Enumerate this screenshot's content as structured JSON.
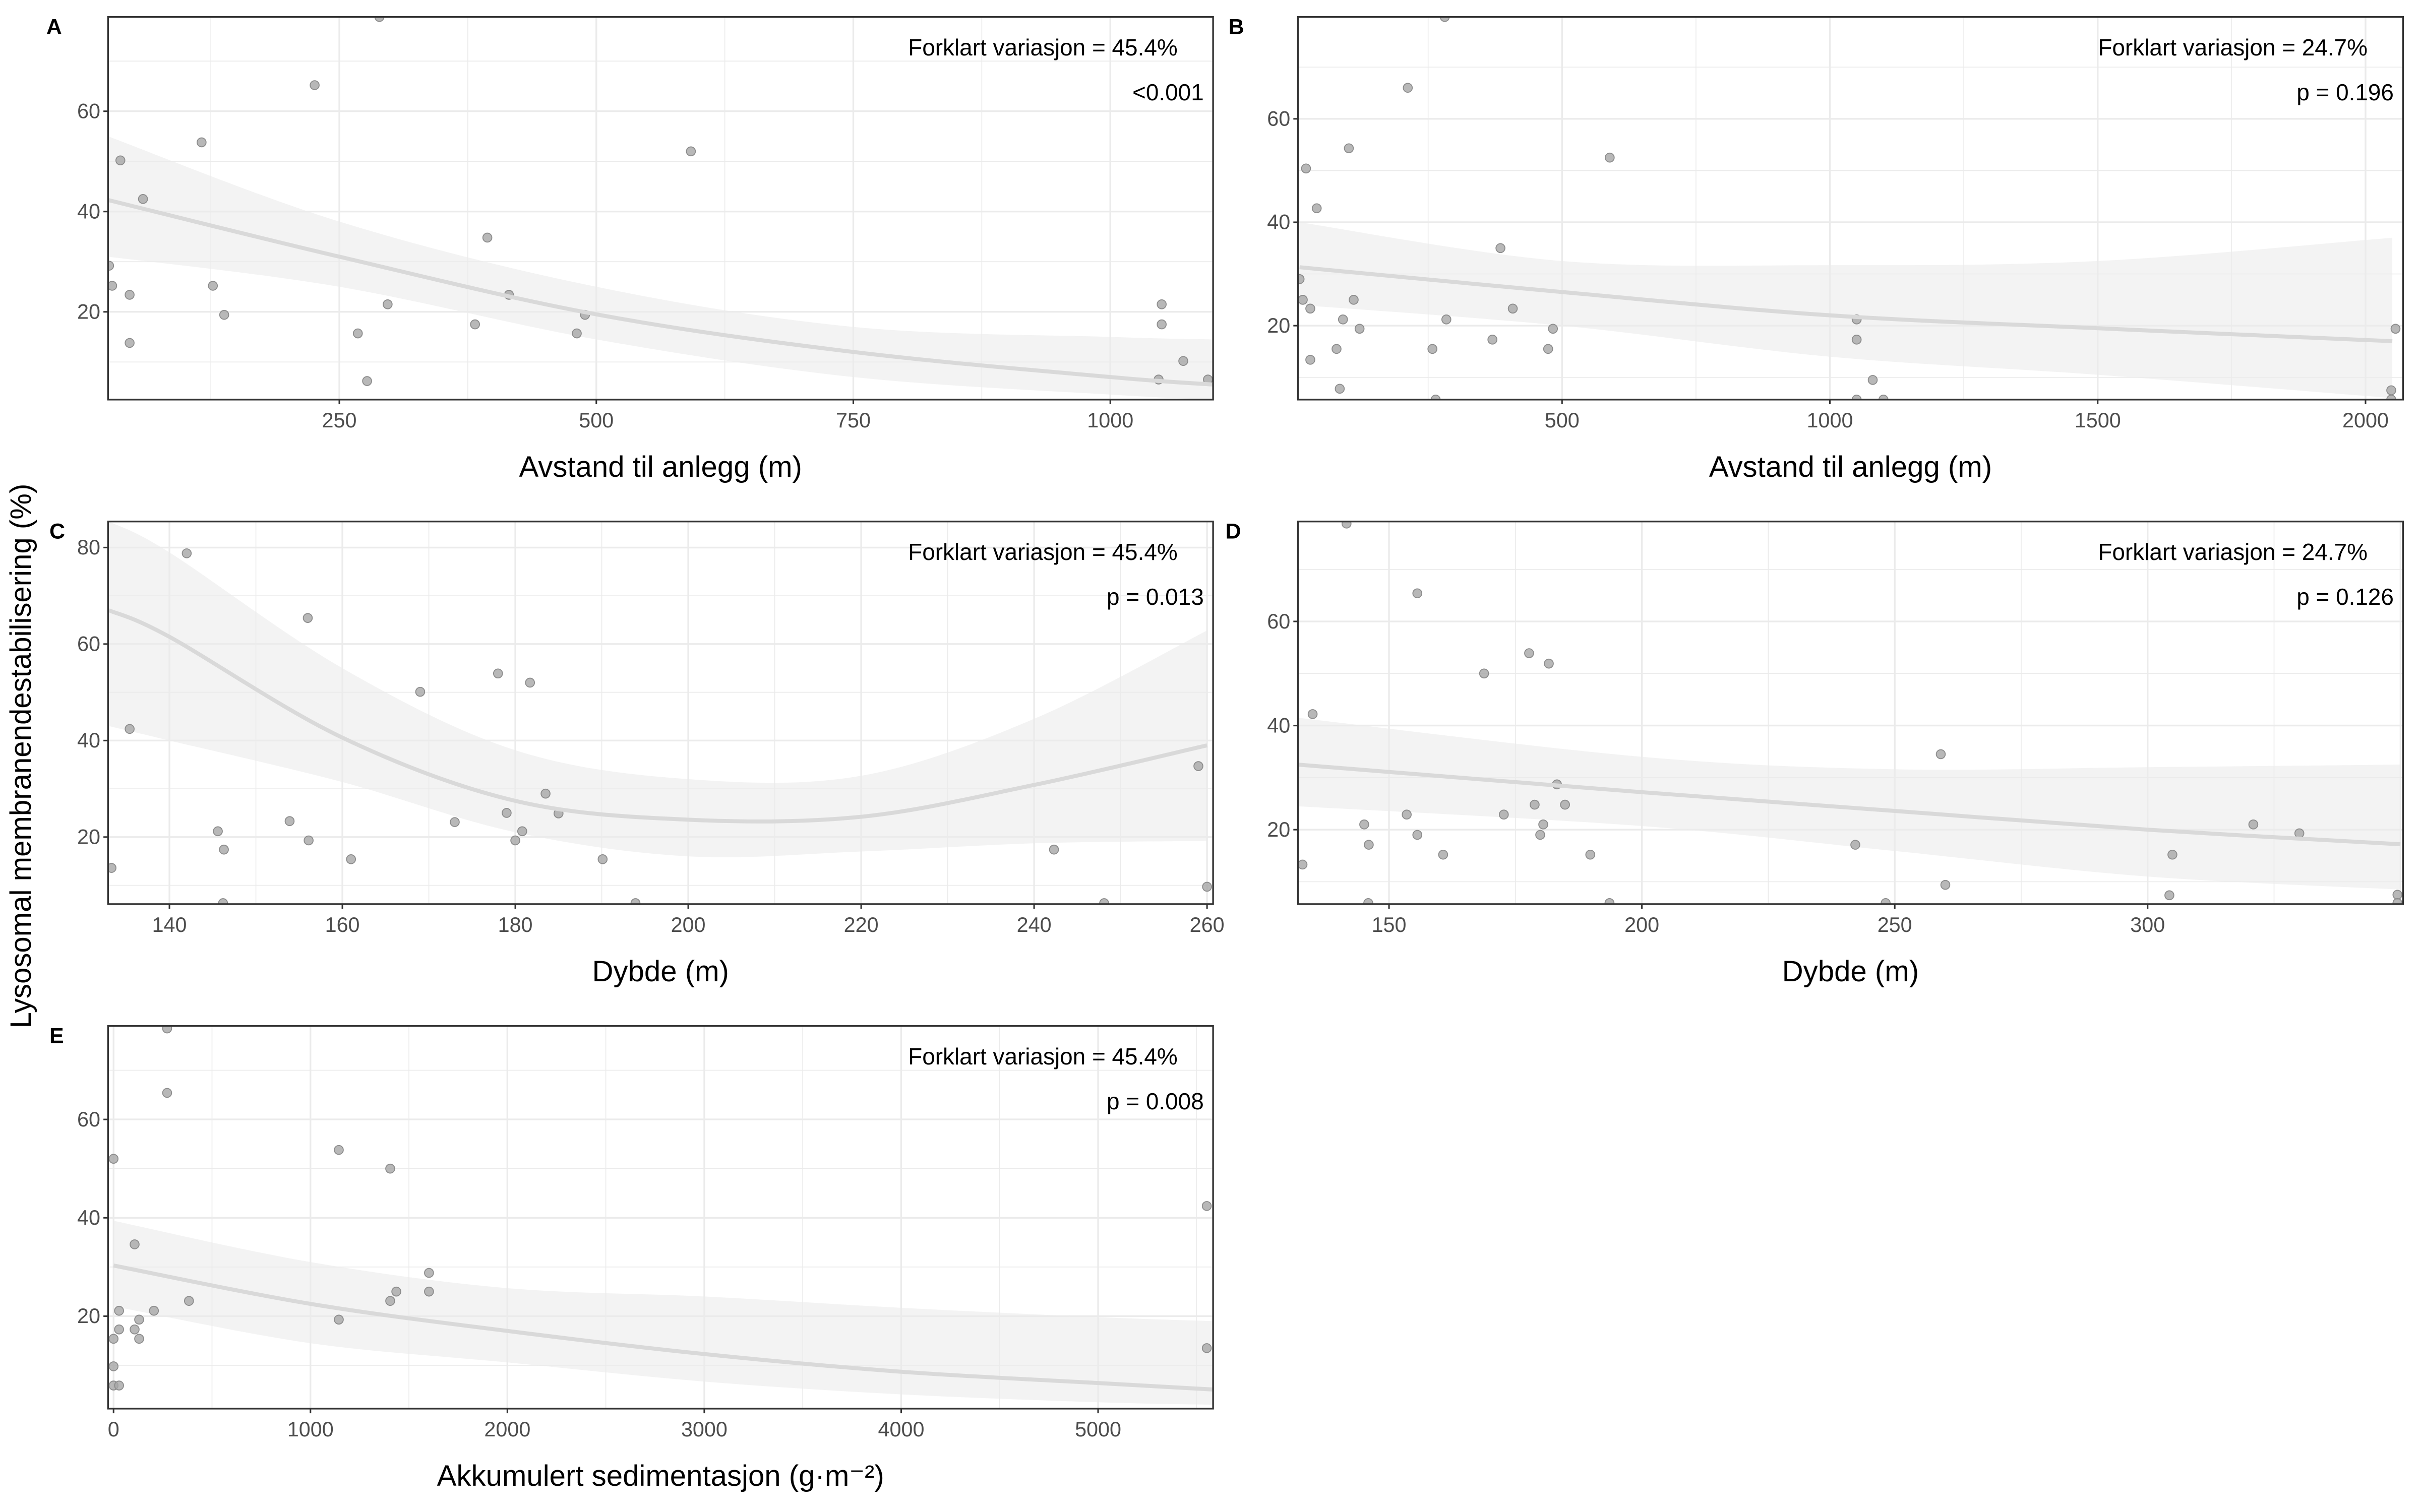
{
  "ylabel": "Lysosomal membranendestabilisering (%)",
  "colors": {
    "point_fill": "#a6a6a6",
    "point_stroke": "#8c8c8c",
    "fit_line": "#d9d9d9",
    "band": "#ebebeb",
    "grid": "#ebebeb",
    "border": "#333333"
  },
  "chart_data": [
    {
      "type": "scatter",
      "panel": "A",
      "xlabel": "Avstand til anlegg (m)",
      "annotation": [
        "Forklart variasjon = 45.4%",
        "<0.001"
      ],
      "xlim": [
        25,
        1100
      ],
      "ylim": [
        2.5,
        78.8
      ],
      "xticks": [
        250,
        500,
        750,
        1000
      ],
      "yticks": [
        20,
        40,
        60
      ],
      "grid": true,
      "points": [
        [
          289,
          78.8
        ],
        [
          226,
          65.2
        ],
        [
          116,
          53.8
        ],
        [
          37,
          50.2
        ],
        [
          592,
          52
        ],
        [
          59,
          42.5
        ],
        [
          394,
          34.8
        ],
        [
          26,
          29.2
        ],
        [
          29,
          25.2
        ],
        [
          46,
          23.4
        ],
        [
          127,
          25.2
        ],
        [
          415,
          23.4
        ],
        [
          138,
          19.4
        ],
        [
          297,
          21.5
        ],
        [
          46,
          13.8
        ],
        [
          268,
          15.7
        ],
        [
          382,
          17.5
        ],
        [
          489,
          19.4
        ],
        [
          481,
          15.7
        ],
        [
          1050,
          21.5
        ],
        [
          1050,
          17.5
        ],
        [
          1071,
          10.2
        ],
        [
          1047,
          6.5
        ],
        [
          1095,
          6.5
        ],
        [
          277,
          6.2
        ]
      ],
      "fit": {
        "x": [
          25,
          250,
          500,
          750,
          1000,
          1100
        ],
        "y": [
          42.3,
          31,
          19.5,
          12,
          7,
          5.5
        ],
        "lower": [
          31,
          25,
          14.5,
          7,
          3.5,
          2.5
        ],
        "upper": [
          55,
          38,
          25,
          17,
          15,
          14.5
        ]
      }
    },
    {
      "type": "scatter",
      "panel": "B",
      "xlabel": "Avstand til anlegg (m)",
      "annotation": [
        "Forklart variasjon = 24.7%",
        "p = 0.196"
      ],
      "xlim": [
        7,
        2070
      ],
      "ylim": [
        5.7,
        79.7
      ],
      "xticks": [
        500,
        1000,
        1500,
        2000
      ],
      "yticks": [
        20,
        40,
        60
      ],
      "grid": true,
      "points": [
        [
          281,
          79.7
        ],
        [
          212,
          66
        ],
        [
          102,
          54.3
        ],
        [
          22,
          50.4
        ],
        [
          589,
          52.5
        ],
        [
          42,
          42.7
        ],
        [
          385,
          35
        ],
        [
          10,
          29
        ],
        [
          16,
          25
        ],
        [
          30,
          23.3
        ],
        [
          111,
          25
        ],
        [
          408,
          23.3
        ],
        [
          91,
          21.2
        ],
        [
          122,
          19.4
        ],
        [
          284,
          21.2
        ],
        [
          483,
          19.4
        ],
        [
          79,
          15.5
        ],
        [
          258,
          15.5
        ],
        [
          370,
          17.3
        ],
        [
          474,
          15.5
        ],
        [
          30,
          13.4
        ],
        [
          85,
          7.8
        ],
        [
          1050,
          21.2
        ],
        [
          1050,
          17.3
        ],
        [
          1080,
          9.5
        ],
        [
          1050,
          5.7
        ],
        [
          1100,
          5.7
        ],
        [
          264,
          5.7
        ],
        [
          2056,
          19.4
        ],
        [
          2048,
          7.5
        ],
        [
          2048,
          5.7
        ]
      ],
      "fit": {
        "x": [
          10,
          500,
          1000,
          1500,
          2050
        ],
        "y": [
          31.3,
          26.5,
          22,
          19.5,
          17
        ],
        "lower": [
          24,
          20,
          14,
          10.5,
          6
        ],
        "upper": [
          40,
          32.5,
          31.7,
          32.5,
          37
        ]
      }
    },
    {
      "type": "scatter",
      "panel": "C",
      "xlabel": "Dybde (m)",
      "annotation": [
        "Forklart variasjon = 45.4%",
        "p = 0.013"
      ],
      "xlim": [
        132.9,
        260.7
      ],
      "ylim": [
        6.1,
        85.4
      ],
      "xticks": [
        140,
        160,
        180,
        200,
        220,
        240,
        260
      ],
      "yticks": [
        20,
        40,
        60,
        80
      ],
      "grid": true,
      "points": [
        [
          142,
          78.8
        ],
        [
          156,
          65.4
        ],
        [
          135.4,
          42.4
        ],
        [
          169,
          50.1
        ],
        [
          178,
          53.9
        ],
        [
          181.7,
          52
        ],
        [
          259,
          34.7
        ],
        [
          183.5,
          29
        ],
        [
          179,
          25
        ],
        [
          185,
          24.9
        ],
        [
          173,
          23.1
        ],
        [
          153.9,
          23.3
        ],
        [
          145.6,
          21.2
        ],
        [
          180.8,
          21.2
        ],
        [
          180,
          19.3
        ],
        [
          156.1,
          19.3
        ],
        [
          146.3,
          17.4
        ],
        [
          242.3,
          17.4
        ],
        [
          161,
          15.4
        ],
        [
          190.1,
          15.4
        ],
        [
          133.3,
          13.6
        ],
        [
          260,
          9.7
        ],
        [
          146.2,
          6.3
        ],
        [
          193.9,
          6.3
        ],
        [
          248.1,
          6.3
        ]
      ],
      "fit": {
        "x": [
          133,
          140,
          160,
          180,
          200,
          220,
          240,
          260
        ],
        "y": [
          67,
          61.5,
          40.6,
          27.5,
          23.6,
          24.2,
          30.8,
          39
        ],
        "lower": [
          43,
          40,
          31.4,
          21,
          16,
          17,
          18.7,
          19.2
        ],
        "upper": [
          85.4,
          79,
          55,
          38,
          32,
          32.7,
          44.5,
          62.8
        ]
      }
    },
    {
      "type": "scatter",
      "panel": "D",
      "xlabel": "Dybde (m)",
      "annotation": [
        "Forklart variasjon = 24.7%",
        "p = 0.126"
      ],
      "xlim": [
        132,
        350.5
      ],
      "ylim": [
        5.7,
        79.2
      ],
      "xticks": [
        150,
        200,
        250,
        300
      ],
      "yticks": [
        20,
        40,
        60
      ],
      "grid": true,
      "points": [
        [
          141.6,
          78.8
        ],
        [
          155.6,
          65.4
        ],
        [
          134.9,
          42.2
        ],
        [
          168.8,
          50
        ],
        [
          177.7,
          53.9
        ],
        [
          181.6,
          51.9
        ],
        [
          259.1,
          34.5
        ],
        [
          183.2,
          28.7
        ],
        [
          178.8,
          24.8
        ],
        [
          184.8,
          24.8
        ],
        [
          172.7,
          22.9
        ],
        [
          153.5,
          22.9
        ],
        [
          145.1,
          21
        ],
        [
          180.5,
          21
        ],
        [
          179.9,
          19
        ],
        [
          155.6,
          19
        ],
        [
          146,
          17.1
        ],
        [
          242.2,
          17.1
        ],
        [
          160.7,
          15.2
        ],
        [
          189.8,
          15.2
        ],
        [
          132.9,
          13.3
        ],
        [
          260,
          9.4
        ],
        [
          320.9,
          21
        ],
        [
          330,
          19.3
        ],
        [
          304.9,
          15.2
        ],
        [
          304.3,
          7.4
        ],
        [
          349.4,
          7.5
        ],
        [
          349.4,
          5.9
        ],
        [
          145.9,
          5.9
        ],
        [
          193.6,
          5.9
        ],
        [
          248.2,
          5.9
        ]
      ],
      "fit": {
        "x": [
          132,
          200,
          250,
          300,
          350
        ],
        "y": [
          32.5,
          27.2,
          23.6,
          20,
          17.2
        ],
        "lower": [
          24.5,
          20.7,
          15.9,
          11,
          8.5
        ],
        "upper": [
          41.5,
          34,
          31.6,
          32,
          32.5
        ]
      }
    },
    {
      "type": "scatter",
      "panel": "E",
      "xlabel": "Akkumulert sedimentasjon (g·m⁻²)",
      "annotation": [
        "Forklart variasjon = 45.4%",
        "p = 0.008"
      ],
      "xlim": [
        -28,
        5584
      ],
      "ylim": [
        1.2,
        79
      ],
      "xticks": [
        0,
        1000,
        2000,
        3000,
        4000,
        5000
      ],
      "yticks": [
        20,
        40,
        60
      ],
      "grid": true,
      "points": [
        [
          272,
          78.5
        ],
        [
          272,
          65.4
        ],
        [
          0,
          52
        ],
        [
          1144,
          53.8
        ],
        [
          1405,
          50
        ],
        [
          5552,
          42.4
        ],
        [
          107,
          34.6
        ],
        [
          1602,
          28.8
        ],
        [
          1436,
          25
        ],
        [
          1602,
          25
        ],
        [
          383,
          23.1
        ],
        [
          1405,
          23.1
        ],
        [
          28,
          21.1
        ],
        [
          205,
          21.1
        ],
        [
          1144,
          19.3
        ],
        [
          130,
          19.3
        ],
        [
          28,
          17.3
        ],
        [
          107,
          17.3
        ],
        [
          0,
          15.4
        ],
        [
          130,
          15.4
        ],
        [
          5552,
          13.5
        ],
        [
          0,
          9.8
        ],
        [
          0,
          5.9
        ],
        [
          28,
          5.9
        ]
      ],
      "fit": {
        "x": [
          0,
          1000,
          2000,
          3000,
          4000,
          5000,
          5580
        ],
        "y": [
          30.3,
          22.5,
          17,
          12.3,
          8.7,
          6.4,
          5.1
        ],
        "lower": [
          22,
          14.5,
          10.6,
          6.7,
          4.1,
          2.5,
          2
        ],
        "upper": [
          39.4,
          31,
          25.7,
          24,
          21.7,
          19.8,
          19
        ]
      }
    }
  ]
}
